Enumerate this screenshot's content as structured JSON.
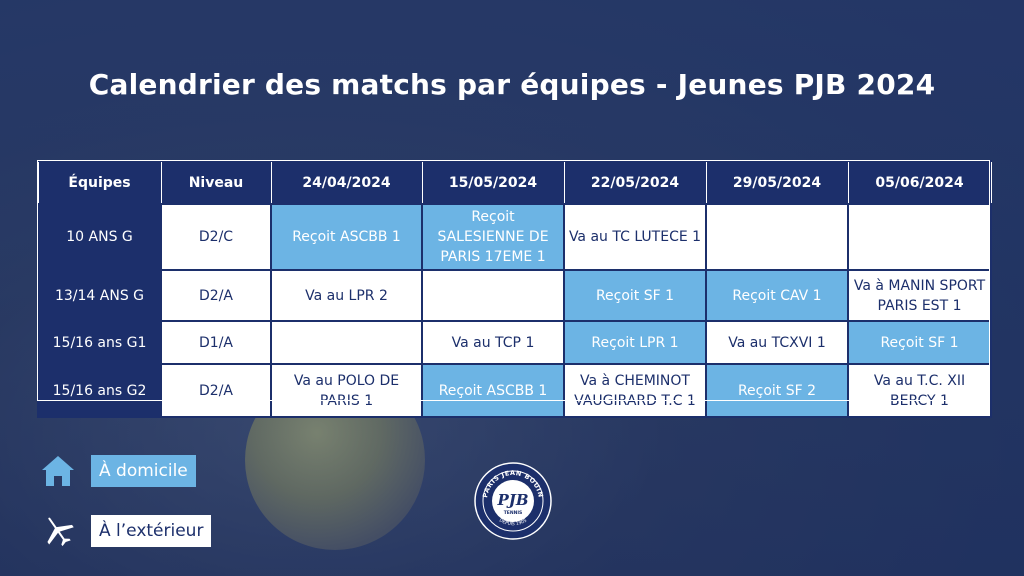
{
  "title": "Calendrier des matchs par équipes - Jeunes PJB 2024",
  "colors": {
    "navy": "#1c2f6b",
    "home": "#6cb4e4",
    "away": "#ffffff"
  },
  "table": {
    "headers": [
      "Équipes",
      "Niveau",
      "24/04/2024",
      "15/05/2024",
      "22/05/2024",
      "29/05/2024",
      "05/06/2024"
    ],
    "rows": [
      {
        "team": "10 ANS G",
        "level": "D2/C",
        "cells": [
          {
            "text": "Reçoit ASCBB 1",
            "type": "home"
          },
          {
            "text": "Reçoit SALESIENNE DE PARIS 17EME 1",
            "type": "home"
          },
          {
            "text": "Va au TC LUTECE 1",
            "type": "away"
          },
          {
            "text": "",
            "type": "away"
          },
          {
            "text": "",
            "type": "away"
          }
        ]
      },
      {
        "team": "13/14 ANS G",
        "level": "D2/A",
        "cells": [
          {
            "text": "Va au LPR 2",
            "type": "away"
          },
          {
            "text": "",
            "type": "away"
          },
          {
            "text": "Reçoit SF 1",
            "type": "home"
          },
          {
            "text": "Reçoit CAV 1",
            "type": "home"
          },
          {
            "text": "Va à MANIN SPORT PARIS EST 1",
            "type": "away"
          }
        ]
      },
      {
        "team": "15/16 ans G1",
        "level": "D1/A",
        "cells": [
          {
            "text": "",
            "type": "away"
          },
          {
            "text": "Va au TCP 1",
            "type": "away"
          },
          {
            "text": "Reçoit LPR 1",
            "type": "home"
          },
          {
            "text": "Va au TCXVI 1",
            "type": "away"
          },
          {
            "text": "Reçoit SF 1",
            "type": "home"
          }
        ]
      },
      {
        "team": "15/16 ans G2",
        "level": "D2/A",
        "cells": [
          {
            "text": "Va au POLO DE PARIS 1",
            "type": "away"
          },
          {
            "text": "Reçoit ASCBB 1",
            "type": "home"
          },
          {
            "text": "Va à CHEMINOT VAUGIRARD T.C 1",
            "type": "away"
          },
          {
            "text": "Reçoit SF 2",
            "type": "home"
          },
          {
            "text": "Va au T.C. XII BERCY 1",
            "type": "away"
          }
        ]
      }
    ]
  },
  "legend": {
    "home": {
      "label": "À domicile",
      "icon": "house-icon"
    },
    "away": {
      "label": "À l’extérieur",
      "icon": "airplane-icon"
    }
  },
  "logo": {
    "top_text": "PARIS JEAN BOUIN",
    "monogram": "PJB",
    "sub_text": "TENNIS",
    "bottom_text": "DEPUIS 1905"
  }
}
